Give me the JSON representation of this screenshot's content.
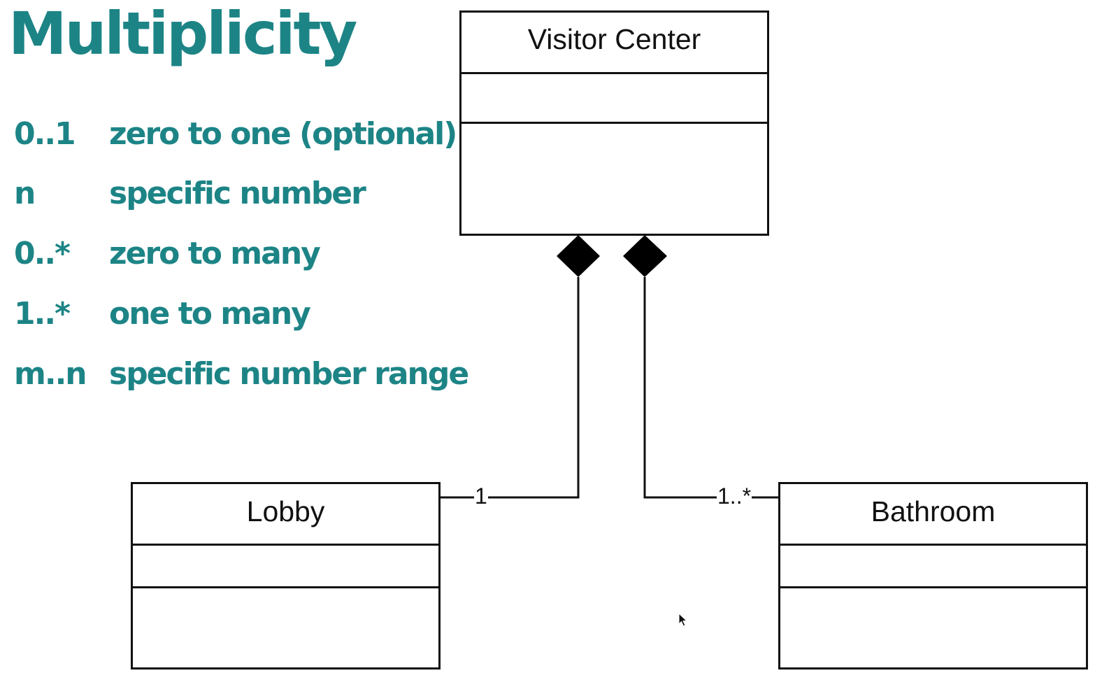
{
  "title": "Multiplicity",
  "legend": [
    {
      "code": "0..1",
      "description": "zero to one (optional)"
    },
    {
      "code": "n",
      "description": "specific number"
    },
    {
      "code": "0..*",
      "description": "zero to many"
    },
    {
      "code": "1..*",
      "description": "one to many"
    },
    {
      "code": "m..n",
      "description": "specific number range"
    }
  ],
  "diagram": {
    "classes": {
      "visitor_center": {
        "name": "Visitor Center"
      },
      "lobby": {
        "name": "Lobby"
      },
      "bathroom": {
        "name": "Bathroom"
      }
    },
    "relationships": [
      {
        "type": "composition",
        "whole": "Visitor Center",
        "part": "Lobby",
        "multiplicity": "1"
      },
      {
        "type": "composition",
        "whole": "Visitor Center",
        "part": "Bathroom",
        "multiplicity": "1..*"
      }
    ]
  },
  "colors": {
    "accent": "#1d8486",
    "line": "#111111",
    "background": "#ffffff"
  }
}
